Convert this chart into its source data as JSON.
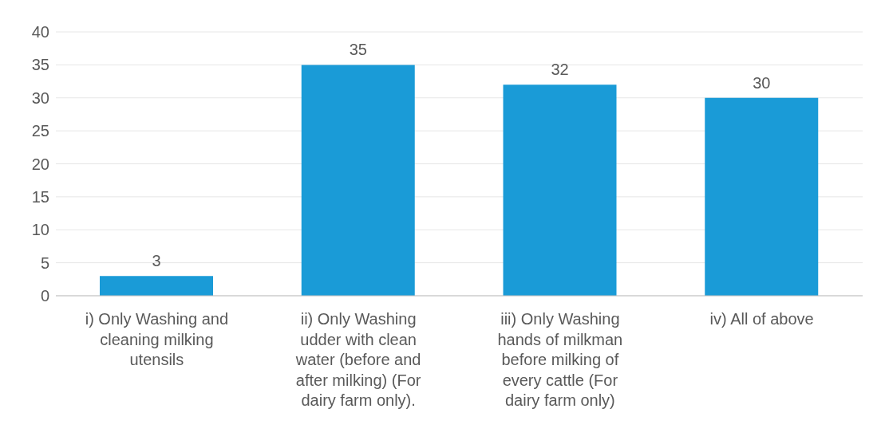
{
  "chart_data": {
    "type": "bar",
    "categories": [
      "i) Only Washing and cleaning milking utensils",
      "ii) Only Washing udder with clean water (before and after milking) (For dairy farm only).",
      "iii) Only Washing hands of milkman before milking of every cattle (For dairy farm only)",
      "iv) All of above"
    ],
    "values": [
      3,
      35,
      32,
      30
    ],
    "color": "#1a9bd7",
    "ylim": [
      0,
      40
    ],
    "yticks": [
      0,
      5,
      10,
      15,
      20,
      25,
      30,
      35,
      40
    ],
    "grid": "y",
    "data_labels": true
  }
}
